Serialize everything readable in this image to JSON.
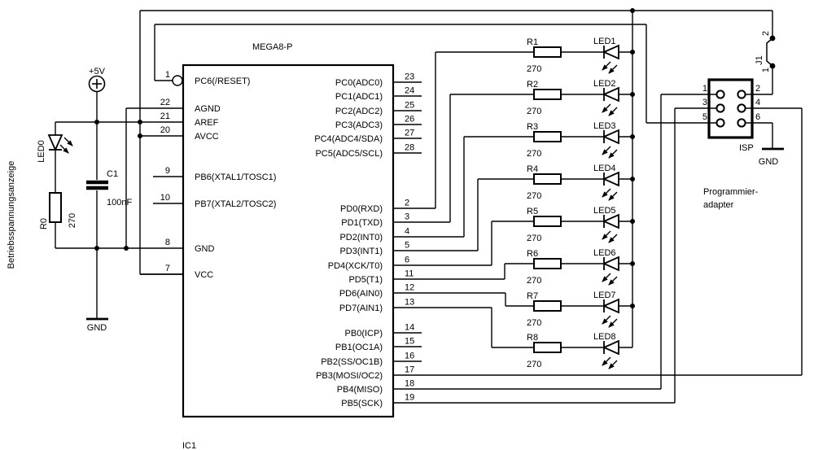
{
  "schematic": {
    "colors": {
      "ink": "#000000",
      "background": "#ffffff"
    },
    "ic": {
      "title": "MEGA8-P",
      "designator": "IC1",
      "left_pins": [
        {
          "num": "1",
          "name": "PC6(/RESET)"
        },
        {
          "num": "22",
          "name": "AGND"
        },
        {
          "num": "21",
          "name": "AREF"
        },
        {
          "num": "20",
          "name": "AVCC"
        },
        {
          "num": "9",
          "name": "PB6(XTAL1/TOSC1)"
        },
        {
          "num": "10",
          "name": "PB7(XTAL2/TOSC2)"
        },
        {
          "num": "8",
          "name": "GND"
        },
        {
          "num": "7",
          "name": "VCC"
        }
      ],
      "right_pins": [
        {
          "num": "23",
          "name": "PC0(ADC0)"
        },
        {
          "num": "24",
          "name": "PC1(ADC1)"
        },
        {
          "num": "25",
          "name": "PC2(ADC2)"
        },
        {
          "num": "26",
          "name": "PC3(ADC3)"
        },
        {
          "num": "27",
          "name": "PC4(ADC4/SDA)"
        },
        {
          "num": "28",
          "name": "PC5(ADC5/SCL)"
        },
        {
          "num": "2",
          "name": "PD0(RXD)"
        },
        {
          "num": "3",
          "name": "PD1(TXD)"
        },
        {
          "num": "4",
          "name": "PD2(INT0)"
        },
        {
          "num": "5",
          "name": "PD3(INT1)"
        },
        {
          "num": "6",
          "name": "PD4(XCK/T0)"
        },
        {
          "num": "11",
          "name": "PD5(T1)"
        },
        {
          "num": "12",
          "name": "PD6(AIN0)"
        },
        {
          "num": "13",
          "name": "PD7(AIN1)"
        },
        {
          "num": "14",
          "name": "PB0(ICP)"
        },
        {
          "num": "15",
          "name": "PB1(OC1A)"
        },
        {
          "num": "16",
          "name": "PB2(SS/OC1B)"
        },
        {
          "num": "17",
          "name": "PB3(MOSI/OC2)"
        },
        {
          "num": "18",
          "name": "PB4(MISO)"
        },
        {
          "num": "19",
          "name": "PB5(SCK)"
        }
      ]
    },
    "led_array": {
      "rows": [
        {
          "resistor": "R1",
          "value": "270",
          "led": "LED1"
        },
        {
          "resistor": "R2",
          "value": "270",
          "led": "LED2"
        },
        {
          "resistor": "R3",
          "value": "270",
          "led": "LED3"
        },
        {
          "resistor": "R4",
          "value": "270",
          "led": "LED4"
        },
        {
          "resistor": "R5",
          "value": "270",
          "led": "LED5"
        },
        {
          "resistor": "R6",
          "value": "270",
          "led": "LED6"
        },
        {
          "resistor": "R7",
          "value": "270",
          "led": "LED7"
        },
        {
          "resistor": "R8",
          "value": "270",
          "led": "LED8"
        }
      ]
    },
    "power_indicator": {
      "annotation": "Betriebsspannungsanzeige",
      "supply_label": "+5V",
      "led": "LED0",
      "resistor": "R0",
      "resistor_value": "270",
      "capacitor": "C1",
      "capacitor_value": "100nF",
      "gnd_label": "GND"
    },
    "isp": {
      "label": "ISP",
      "pins_left": [
        "1",
        "3",
        "5"
      ],
      "pins_right": [
        "2",
        "4",
        "6"
      ],
      "gnd_label": "GND",
      "title_line1": "Programmier-",
      "title_line2": "adapter",
      "jumper": {
        "name": "J1",
        "pin_top": "2",
        "pin_bottom": "1"
      }
    }
  }
}
